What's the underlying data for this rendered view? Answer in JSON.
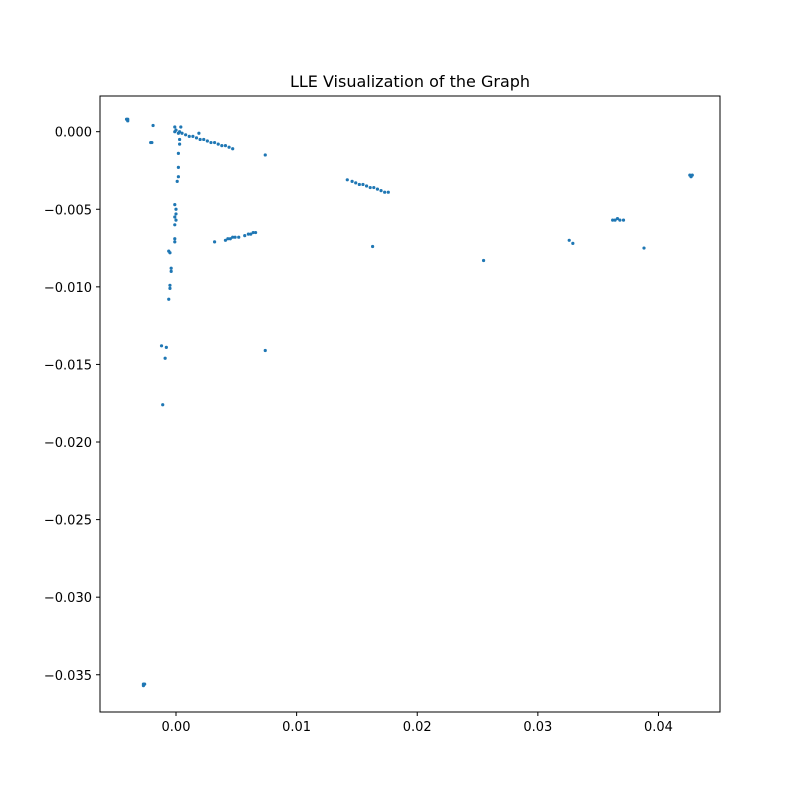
{
  "chart_data": {
    "type": "scatter",
    "title": "LLE Visualization of the Graph",
    "xlabel": "",
    "ylabel": "",
    "xlim": [
      -0.0063,
      0.0451
    ],
    "ylim": [
      -0.0374,
      0.0023
    ],
    "grid": false,
    "legend": "none",
    "marker_color": "#1f77b4",
    "x_ticks": [
      0.0,
      0.01,
      0.02,
      0.03,
      0.04
    ],
    "x_tick_labels": [
      "0.00",
      "0.01",
      "0.02",
      "0.03",
      "0.04"
    ],
    "y_ticks": [
      0.0,
      -0.005,
      -0.01,
      -0.015,
      -0.02,
      -0.025,
      -0.03,
      -0.035
    ],
    "y_tick_labels": [
      "0.000",
      "−0.005",
      "−0.010",
      "−0.015",
      "−0.020",
      "−0.025",
      "−0.030",
      "−0.035"
    ],
    "points": [
      [
        -0.004,
        0.0008
      ],
      [
        -0.004,
        0.0007
      ],
      [
        -0.0041,
        0.0008
      ],
      [
        -0.0019,
        0.0004
      ],
      [
        -0.002,
        -0.0007
      ],
      [
        -0.0021,
        -0.0007
      ],
      [
        -0.0001,
        0.0003
      ],
      [
        0.0004,
        0.0003
      ],
      [
        -0.0001,
        0.0
      ],
      [
        0.0002,
        -0.0001
      ],
      [
        0.0,
        0.0001
      ],
      [
        0.0003,
        0.0
      ],
      [
        0.0005,
        -0.0001
      ],
      [
        0.0008,
        -0.0002
      ],
      [
        0.0011,
        -0.0003
      ],
      [
        0.0014,
        -0.0003
      ],
      [
        0.0017,
        -0.0004
      ],
      [
        0.002,
        -0.0005
      ],
      [
        0.0023,
        -0.0005
      ],
      [
        0.0026,
        -0.0006
      ],
      [
        0.0029,
        -0.0007
      ],
      [
        0.0032,
        -0.0007
      ],
      [
        0.0035,
        -0.0008
      ],
      [
        0.0038,
        -0.0009
      ],
      [
        0.0041,
        -0.0009
      ],
      [
        0.0044,
        -0.001
      ],
      [
        0.0047,
        -0.0011
      ],
      [
        0.0019,
        -0.0001
      ],
      [
        0.0003,
        -0.0005
      ],
      [
        0.0003,
        -0.0008
      ],
      [
        0.0002,
        -0.0014
      ],
      [
        0.0002,
        -0.0023
      ],
      [
        0.0002,
        -0.0029
      ],
      [
        0.0001,
        -0.0032
      ],
      [
        -0.0001,
        -0.0047
      ],
      [
        0.0,
        -0.005
      ],
      [
        0.0,
        -0.0053
      ],
      [
        -0.0001,
        -0.0055
      ],
      [
        0.0,
        -0.0057
      ],
      [
        -0.0001,
        -0.006
      ],
      [
        -0.0001,
        -0.0069
      ],
      [
        -0.0001,
        -0.0071
      ],
      [
        -0.0006,
        -0.0077
      ],
      [
        -0.0005,
        -0.0078
      ],
      [
        -0.0004,
        -0.0088
      ],
      [
        -0.0004,
        -0.009
      ],
      [
        -0.0005,
        -0.0099
      ],
      [
        -0.0005,
        -0.0101
      ],
      [
        -0.0006,
        -0.0108
      ],
      [
        -0.0012,
        -0.0138
      ],
      [
        -0.0008,
        -0.0139
      ],
      [
        -0.0009,
        -0.0146
      ],
      [
        -0.0011,
        -0.0176
      ],
      [
        0.0074,
        -0.0015
      ],
      [
        0.0074,
        -0.0141
      ],
      [
        0.0032,
        -0.0071
      ],
      [
        0.0041,
        -0.007
      ],
      [
        0.0043,
        -0.0069
      ],
      [
        0.0045,
        -0.0069
      ],
      [
        0.0047,
        -0.0068
      ],
      [
        0.0049,
        -0.0068
      ],
      [
        0.0052,
        -0.0068
      ],
      [
        0.0057,
        -0.0067
      ],
      [
        0.006,
        -0.0066
      ],
      [
        0.0062,
        -0.0066
      ],
      [
        0.0064,
        -0.0065
      ],
      [
        0.0066,
        -0.0065
      ],
      [
        0.0142,
        -0.0031
      ],
      [
        0.0146,
        -0.0032
      ],
      [
        0.0149,
        -0.0033
      ],
      [
        0.0152,
        -0.0034
      ],
      [
        0.0155,
        -0.0034
      ],
      [
        0.0158,
        -0.0035
      ],
      [
        0.0161,
        -0.0036
      ],
      [
        0.0164,
        -0.0036
      ],
      [
        0.0167,
        -0.0037
      ],
      [
        0.017,
        -0.0038
      ],
      [
        0.0173,
        -0.0039
      ],
      [
        0.0176,
        -0.0039
      ],
      [
        0.0163,
        -0.0074
      ],
      [
        0.0255,
        -0.0083
      ],
      [
        0.0326,
        -0.007
      ],
      [
        0.0329,
        -0.0072
      ],
      [
        0.0362,
        -0.0057
      ],
      [
        0.0364,
        -0.0057
      ],
      [
        0.0366,
        -0.0056
      ],
      [
        0.0368,
        -0.0057
      ],
      [
        0.0371,
        -0.0057
      ],
      [
        0.0388,
        -0.0075
      ],
      [
        0.0426,
        -0.0028
      ],
      [
        0.0427,
        -0.0029
      ],
      [
        0.0428,
        -0.0028
      ],
      [
        -0.0027,
        -0.0356
      ],
      [
        -0.0026,
        -0.0356
      ],
      [
        -0.0027,
        -0.0357
      ]
    ]
  }
}
